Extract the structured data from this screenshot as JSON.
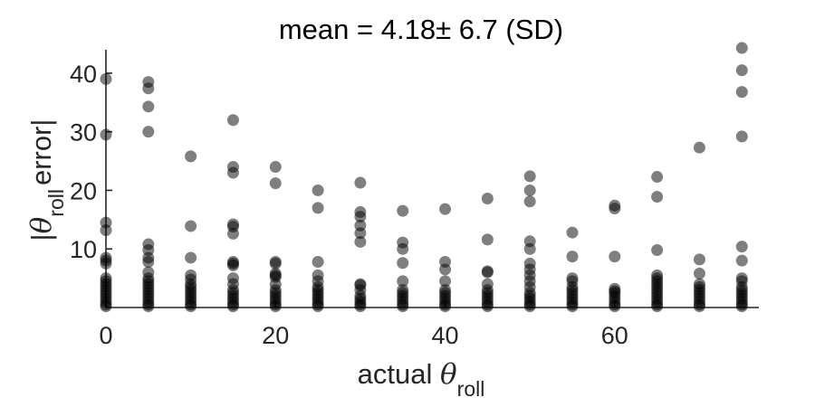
{
  "chart_data": {
    "type": "scatter",
    "title": "mean = 4.18± 6.7 (SD)",
    "xlabel": {
      "prefix": "actual ",
      "symbol": "θ",
      "subscript": "roll"
    },
    "ylabel": {
      "prefix": "|",
      "symbol": "θ",
      "subscript": "roll",
      "suffix": "error|"
    },
    "xlim": [
      0,
      77
    ],
    "ylim": [
      0,
      44
    ],
    "xticks": [
      0,
      20,
      40,
      60
    ],
    "yticks": [
      10,
      20,
      30,
      40
    ],
    "grid": false,
    "marker_color": "#000000",
    "marker_opacity": 0.5,
    "points": [
      [
        0,
        39
      ],
      [
        0,
        29.5
      ],
      [
        0,
        14.5
      ],
      [
        0,
        13.2
      ],
      [
        0,
        8.5
      ],
      [
        0,
        8
      ],
      [
        0,
        7.5
      ],
      [
        0,
        5
      ],
      [
        0,
        4.5
      ],
      [
        0,
        4
      ],
      [
        0,
        3.5
      ],
      [
        0,
        3
      ],
      [
        0,
        2.5
      ],
      [
        0,
        2
      ],
      [
        0,
        1.5
      ],
      [
        0,
        1
      ],
      [
        0,
        0.5
      ],
      [
        0,
        0.2
      ],
      [
        5,
        38.5
      ],
      [
        5,
        37.4
      ],
      [
        5,
        34.3
      ],
      [
        5,
        30
      ],
      [
        5,
        10.8
      ],
      [
        5,
        9.8
      ],
      [
        5,
        8.5
      ],
      [
        5,
        7.8
      ],
      [
        5,
        6
      ],
      [
        5,
        5
      ],
      [
        5,
        4.5
      ],
      [
        5,
        4
      ],
      [
        5,
        3.5
      ],
      [
        5,
        3
      ],
      [
        5,
        2.5
      ],
      [
        5,
        2
      ],
      [
        5,
        1.5
      ],
      [
        5,
        1
      ],
      [
        5,
        0.5
      ],
      [
        5,
        0.2
      ],
      [
        10,
        25.8
      ],
      [
        10,
        13.9
      ],
      [
        10,
        8.5
      ],
      [
        10,
        5.5
      ],
      [
        10,
        4.8
      ],
      [
        10,
        4
      ],
      [
        10,
        3.5
      ],
      [
        10,
        3
      ],
      [
        10,
        2.5
      ],
      [
        10,
        2
      ],
      [
        10,
        1.5
      ],
      [
        10,
        1
      ],
      [
        10,
        0.5
      ],
      [
        10,
        0.2
      ],
      [
        15,
        32
      ],
      [
        15,
        24
      ],
      [
        15,
        23
      ],
      [
        15,
        14.2
      ],
      [
        15,
        13.8
      ],
      [
        15,
        12.6
      ],
      [
        15,
        7.8
      ],
      [
        15,
        7.5
      ],
      [
        15,
        7.2
      ],
      [
        15,
        5
      ],
      [
        15,
        4
      ],
      [
        15,
        3
      ],
      [
        15,
        2.5
      ],
      [
        15,
        2
      ],
      [
        15,
        1.5
      ],
      [
        15,
        1
      ],
      [
        15,
        0.5
      ],
      [
        15,
        0.2
      ],
      [
        20,
        24
      ],
      [
        20,
        21.2
      ],
      [
        20,
        7.8
      ],
      [
        20,
        7.5
      ],
      [
        20,
        5.8
      ],
      [
        20,
        5.5
      ],
      [
        20,
        5.2
      ],
      [
        20,
        4
      ],
      [
        20,
        3
      ],
      [
        20,
        2.5
      ],
      [
        20,
        2
      ],
      [
        20,
        1.5
      ],
      [
        20,
        1
      ],
      [
        20,
        0.5
      ],
      [
        20,
        0.2
      ],
      [
        25,
        20
      ],
      [
        25,
        17
      ],
      [
        25,
        7.8
      ],
      [
        25,
        5.5
      ],
      [
        25,
        4.5
      ],
      [
        25,
        3.5
      ],
      [
        25,
        3
      ],
      [
        25,
        2.5
      ],
      [
        25,
        2
      ],
      [
        25,
        1.5
      ],
      [
        25,
        1
      ],
      [
        25,
        0.5
      ],
      [
        25,
        0.2
      ],
      [
        30,
        21.3
      ],
      [
        30,
        16.3
      ],
      [
        30,
        15.5
      ],
      [
        30,
        14
      ],
      [
        30,
        12.7
      ],
      [
        30,
        11.2
      ],
      [
        30,
        4
      ],
      [
        30,
        3.8
      ],
      [
        30,
        3
      ],
      [
        30,
        2
      ],
      [
        30,
        1.5
      ],
      [
        30,
        1
      ],
      [
        30,
        0.5
      ],
      [
        30,
        0.2
      ],
      [
        35,
        16.5
      ],
      [
        35,
        11.1
      ],
      [
        35,
        10
      ],
      [
        35,
        7.6
      ],
      [
        35,
        4.5
      ],
      [
        35,
        3
      ],
      [
        35,
        2.5
      ],
      [
        35,
        2
      ],
      [
        35,
        1.5
      ],
      [
        35,
        1
      ],
      [
        35,
        0.5
      ],
      [
        35,
        0.2
      ],
      [
        40,
        16.8
      ],
      [
        40,
        7.8
      ],
      [
        40,
        6.5
      ],
      [
        40,
        4.5
      ],
      [
        40,
        3
      ],
      [
        40,
        2.5
      ],
      [
        40,
        2
      ],
      [
        40,
        1.5
      ],
      [
        40,
        1
      ],
      [
        40,
        0.5
      ],
      [
        40,
        0.2
      ],
      [
        45,
        18.6
      ],
      [
        45,
        11.6
      ],
      [
        45,
        6.2
      ],
      [
        45,
        6
      ],
      [
        45,
        4
      ],
      [
        45,
        3
      ],
      [
        45,
        2.5
      ],
      [
        45,
        2
      ],
      [
        45,
        1.5
      ],
      [
        45,
        1
      ],
      [
        45,
        0.5
      ],
      [
        45,
        0.2
      ],
      [
        50,
        22.4
      ],
      [
        50,
        20
      ],
      [
        50,
        18.1
      ],
      [
        50,
        11.3
      ],
      [
        50,
        10
      ],
      [
        50,
        7.5
      ],
      [
        50,
        6.5
      ],
      [
        50,
        5.5
      ],
      [
        50,
        4.5
      ],
      [
        50,
        3.5
      ],
      [
        50,
        2.5
      ],
      [
        50,
        2
      ],
      [
        50,
        1.5
      ],
      [
        50,
        1
      ],
      [
        50,
        0.5
      ],
      [
        50,
        0.2
      ],
      [
        55,
        12.8
      ],
      [
        55,
        8.7
      ],
      [
        55,
        5
      ],
      [
        55,
        4.5
      ],
      [
        55,
        3.5
      ],
      [
        55,
        3
      ],
      [
        55,
        2.5
      ],
      [
        55,
        2
      ],
      [
        55,
        1.5
      ],
      [
        55,
        1
      ],
      [
        55,
        0.5
      ],
      [
        55,
        0.2
      ],
      [
        60,
        17.4
      ],
      [
        60,
        16.9
      ],
      [
        60,
        8.7
      ],
      [
        60,
        3.2
      ],
      [
        60,
        2.8
      ],
      [
        60,
        2.5
      ],
      [
        60,
        2
      ],
      [
        60,
        1.5
      ],
      [
        60,
        1
      ],
      [
        60,
        0.5
      ],
      [
        60,
        0.2
      ],
      [
        65,
        22.3
      ],
      [
        65,
        18.9
      ],
      [
        65,
        9.8
      ],
      [
        65,
        5.5
      ],
      [
        65,
        5
      ],
      [
        65,
        4.5
      ],
      [
        65,
        4
      ],
      [
        65,
        3.5
      ],
      [
        65,
        3
      ],
      [
        65,
        2.5
      ],
      [
        65,
        2
      ],
      [
        65,
        1.5
      ],
      [
        65,
        1
      ],
      [
        65,
        0.5
      ],
      [
        65,
        0.2
      ],
      [
        70,
        27.3
      ],
      [
        70,
        8.2
      ],
      [
        70,
        5.8
      ],
      [
        70,
        4
      ],
      [
        70,
        3.5
      ],
      [
        70,
        3
      ],
      [
        70,
        2.5
      ],
      [
        70,
        2
      ],
      [
        70,
        1.5
      ],
      [
        70,
        1
      ],
      [
        70,
        0.5
      ],
      [
        70,
        0.2
      ],
      [
        75,
        44.3
      ],
      [
        75,
        40.5
      ],
      [
        75,
        36.8
      ],
      [
        75,
        29.2
      ],
      [
        75,
        10.4
      ],
      [
        75,
        8
      ],
      [
        75,
        5
      ],
      [
        75,
        4.5
      ],
      [
        75,
        3.5
      ],
      [
        75,
        3
      ],
      [
        75,
        2.5
      ],
      [
        75,
        2
      ],
      [
        75,
        1.5
      ],
      [
        75,
        1
      ],
      [
        75,
        0.5
      ],
      [
        75,
        0.2
      ]
    ]
  }
}
